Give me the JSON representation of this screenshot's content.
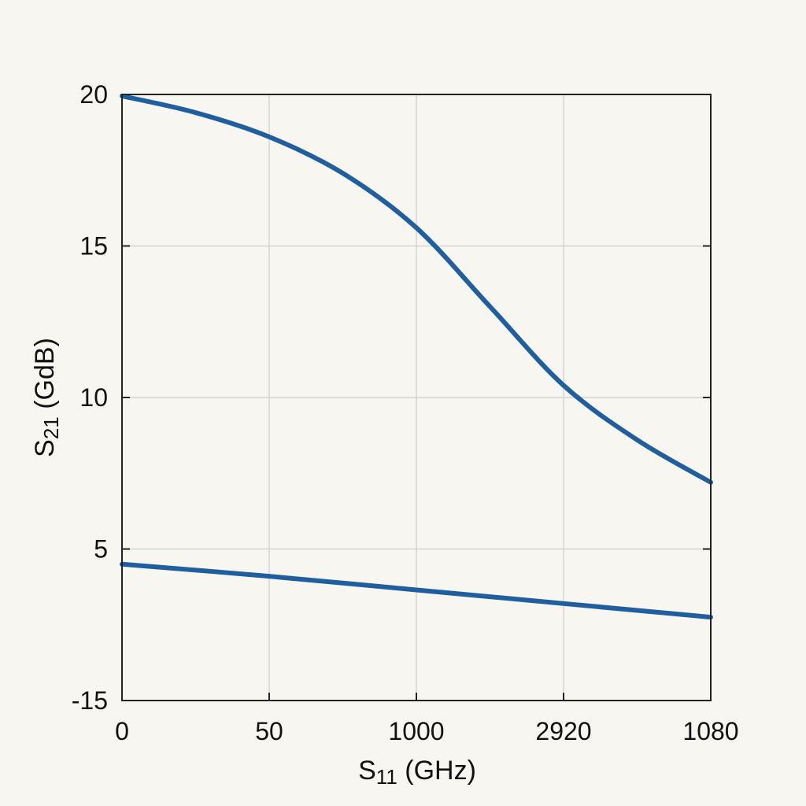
{
  "chart_data": {
    "type": "line",
    "title": "",
    "xlabel": {
      "main": "S",
      "sub": "11",
      "rest": " (GHz)"
    },
    "ylabel": {
      "main": "S",
      "sub": "21",
      "rest": " (GdB)"
    },
    "x_tick_labels": [
      "0",
      "50",
      "1000",
      "2920",
      "1080"
    ],
    "y_tick_labels": [
      "-15",
      "5",
      "10",
      "15",
      "20"
    ],
    "grid": true,
    "line_color": "#1f5fa0",
    "series": [
      {
        "x": [
          0,
          0.125,
          0.25,
          0.375,
          0.5,
          0.625,
          0.75,
          0.875,
          1
        ],
        "y": [
          19.95,
          19.4,
          18.6,
          17.4,
          15.6,
          13.0,
          10.4,
          8.6,
          7.2
        ]
      },
      {
        "x": [
          0,
          0.25,
          0.5,
          0.75,
          1
        ],
        "y": [
          4.5,
          4.1,
          3.65,
          3.2,
          2.75
        ]
      }
    ]
  }
}
